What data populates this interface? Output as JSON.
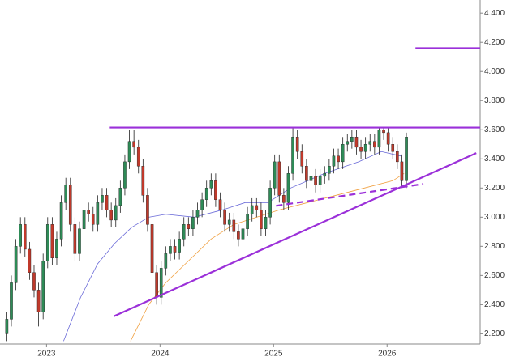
{
  "chart_data": {
    "type": "candlestick",
    "x": [
      2022.65,
      2022.69,
      2022.73,
      2022.77,
      2022.81,
      2022.85,
      2022.89,
      2022.93,
      2022.97,
      2023.01,
      2023.05,
      2023.09,
      2023.13,
      2023.17,
      2023.21,
      2023.25,
      2023.29,
      2023.33,
      2023.37,
      2023.41,
      2023.45,
      2023.49,
      2023.53,
      2023.57,
      2023.61,
      2023.65,
      2023.69,
      2023.73,
      2023.77,
      2023.81,
      2023.85,
      2023.89,
      2023.93,
      2023.97,
      2024.01,
      2024.05,
      2024.09,
      2024.13,
      2024.17,
      2024.21,
      2024.25,
      2024.29,
      2024.33,
      2024.37,
      2024.41,
      2024.45,
      2024.49,
      2024.53,
      2024.57,
      2024.61,
      2024.65,
      2024.69,
      2024.73,
      2024.77,
      2024.81,
      2024.85,
      2024.89,
      2024.93,
      2024.97,
      2025.01,
      2025.05,
      2025.09,
      2025.13,
      2025.17,
      2025.21,
      2025.25,
      2025.29,
      2025.33,
      2025.37,
      2025.41,
      2025.45,
      2025.49,
      2025.53,
      2025.57,
      2025.61,
      2025.65,
      2025.69,
      2025.73,
      2025.77,
      2025.81,
      2025.85,
      2025.89,
      2025.93,
      2025.97,
      2026.01,
      2026.05,
      2026.09,
      2026.13,
      2026.17
    ],
    "open": [
      2.2,
      2.3,
      2.55,
      2.8,
      2.95,
      2.78,
      2.62,
      2.5,
      2.35,
      2.7,
      2.95,
      2.72,
      2.85,
      3.1,
      3.22,
      2.95,
      2.75,
      2.92,
      3.05,
      3.02,
      2.95,
      3.1,
      3.15,
      3.05,
      2.98,
      3.08,
      3.2,
      3.38,
      3.52,
      3.48,
      3.35,
      3.15,
      2.95,
      2.62,
      2.45,
      2.65,
      2.75,
      2.8,
      2.76,
      2.85,
      2.95,
      2.92,
      3.0,
      3.05,
      3.12,
      3.2,
      3.25,
      3.12,
      3.05,
      2.95,
      2.98,
      2.9,
      2.85,
      2.92,
      3.02,
      3.08,
      3.05,
      2.92,
      3.0,
      3.2,
      3.38,
      3.15,
      3.1,
      3.3,
      3.55,
      3.45,
      3.35,
      3.25,
      3.28,
      3.22,
      3.28,
      3.3,
      3.35,
      3.42,
      3.38,
      3.5,
      3.52,
      3.55,
      3.48,
      3.45,
      3.5,
      3.52,
      3.48,
      3.6,
      3.58,
      3.5,
      3.45,
      3.38,
      3.25
    ],
    "high": [
      2.35,
      2.6,
      2.85,
      3.0,
      3.0,
      2.83,
      2.67,
      2.55,
      2.75,
      3.0,
      3.0,
      2.9,
      3.15,
      3.27,
      3.27,
      3.0,
      2.97,
      3.1,
      3.1,
      3.07,
      3.15,
      3.2,
      3.2,
      3.1,
      3.13,
      3.25,
      3.43,
      3.6,
      3.6,
      3.53,
      3.4,
      3.2,
      3.0,
      2.67,
      2.7,
      2.8,
      2.85,
      2.85,
      2.9,
      3.0,
      3.0,
      3.05,
      3.1,
      3.17,
      3.25,
      3.3,
      3.3,
      3.17,
      3.1,
      3.03,
      3.03,
      2.95,
      2.97,
      3.07,
      3.13,
      3.13,
      3.1,
      3.05,
      3.25,
      3.43,
      3.43,
      3.2,
      3.35,
      3.62,
      3.6,
      3.5,
      3.4,
      3.33,
      3.33,
      3.33,
      3.35,
      3.4,
      3.47,
      3.47,
      3.55,
      3.57,
      3.6,
      3.6,
      3.53,
      3.55,
      3.57,
      3.57,
      3.62,
      3.62,
      3.62,
      3.55,
      3.5,
      3.43,
      3.58
    ],
    "low": [
      2.15,
      2.25,
      2.5,
      2.75,
      2.73,
      2.57,
      2.45,
      2.25,
      2.3,
      2.65,
      2.67,
      2.67,
      2.8,
      3.05,
      2.9,
      2.7,
      2.7,
      2.87,
      2.97,
      2.9,
      2.9,
      3.05,
      3.0,
      2.93,
      2.93,
      3.03,
      3.15,
      3.33,
      3.43,
      3.3,
      3.1,
      2.9,
      2.57,
      2.4,
      2.4,
      2.6,
      2.7,
      2.71,
      2.71,
      2.8,
      2.87,
      2.87,
      2.95,
      3.0,
      3.07,
      3.15,
      3.07,
      3.0,
      2.9,
      2.9,
      2.85,
      2.8,
      2.8,
      2.87,
      2.97,
      3.0,
      2.87,
      2.87,
      2.95,
      3.15,
      3.1,
      3.05,
      3.05,
      3.25,
      3.4,
      3.3,
      3.2,
      3.2,
      3.17,
      3.17,
      3.23,
      3.25,
      3.3,
      3.33,
      3.33,
      3.45,
      3.47,
      3.43,
      3.4,
      3.4,
      3.45,
      3.43,
      3.43,
      3.53,
      3.45,
      3.4,
      3.33,
      3.2,
      3.2
    ],
    "close": [
      2.3,
      2.55,
      2.8,
      2.95,
      2.78,
      2.62,
      2.5,
      2.35,
      2.7,
      2.95,
      2.72,
      2.85,
      3.1,
      3.22,
      2.95,
      2.75,
      2.92,
      3.05,
      3.02,
      2.95,
      3.1,
      3.15,
      3.05,
      2.98,
      3.08,
      3.2,
      3.38,
      3.52,
      3.48,
      3.35,
      3.15,
      2.95,
      2.62,
      2.45,
      2.65,
      2.75,
      2.8,
      2.76,
      2.85,
      2.95,
      2.92,
      3.0,
      3.05,
      3.12,
      3.2,
      3.25,
      3.12,
      3.05,
      2.95,
      2.98,
      2.9,
      2.85,
      2.92,
      3.02,
      3.08,
      3.05,
      2.92,
      3.0,
      3.2,
      3.38,
      3.15,
      3.1,
      3.3,
      3.55,
      3.45,
      3.35,
      3.25,
      3.28,
      3.22,
      3.28,
      3.3,
      3.35,
      3.42,
      3.38,
      3.5,
      3.52,
      3.55,
      3.48,
      3.45,
      3.5,
      3.52,
      3.48,
      3.6,
      3.58,
      3.5,
      3.45,
      3.38,
      3.25,
      3.55
    ],
    "up_color": "#2e8b57",
    "down_color": "#c0392b",
    "lines": [
      {
        "color": "#6a6ad8",
        "x": [
          2023.15,
          2023.3,
          2023.45,
          2023.6,
          2023.75,
          2023.9,
          2024.05,
          2024.3,
          2024.55,
          2024.75,
          2024.95,
          2025.15,
          2025.45,
          2025.75,
          2025.95,
          2026.12
        ],
        "values": [
          2.15,
          2.45,
          2.68,
          2.82,
          2.93,
          3.0,
          3.02,
          3.0,
          3.05,
          3.1,
          3.1,
          3.2,
          3.3,
          3.38,
          3.45,
          3.42
        ]
      },
      {
        "color": "#f0a040",
        "x": [
          2023.74,
          2023.9,
          2024.05,
          2024.25,
          2024.45,
          2024.65,
          2024.85,
          2025.05,
          2025.3,
          2025.55,
          2025.8,
          2026.05,
          2026.15
        ],
        "values": [
          2.15,
          2.4,
          2.55,
          2.7,
          2.85,
          2.95,
          3.0,
          3.05,
          3.1,
          3.15,
          3.2,
          3.25,
          3.3
        ]
      }
    ],
    "trendlines": [
      {
        "color": "#9b30d9",
        "dashed": false,
        "x": [
          2023.557,
          2026.82
        ],
        "values": [
          3.615,
          3.615
        ]
      },
      {
        "color": "#9b30d9",
        "dashed": false,
        "x": [
          2026.25,
          2026.82
        ],
        "values": [
          4.16,
          4.16
        ]
      },
      {
        "color": "#9b30d9",
        "dashed": false,
        "x": [
          2023.593,
          2026.786
        ],
        "values": [
          2.32,
          3.44
        ]
      },
      {
        "color": "#9b30d9",
        "dashed": true,
        "x": [
          2025.022,
          2026.32
        ],
        "values": [
          3.078,
          3.228
        ]
      }
    ],
    "xlim": [
      2022.59,
      2026.82
    ],
    "ylim": [
      2.13,
      4.49
    ],
    "xticks": [
      2023,
      2024,
      2025,
      2026
    ],
    "yticks": [
      {
        "value": 2.2,
        "label": "2.200"
      },
      {
        "value": 2.4,
        "label": "2.400"
      },
      {
        "value": 2.6,
        "label": "2.600"
      },
      {
        "value": 2.8,
        "label": "2.800"
      },
      {
        "value": 3.0,
        "label": "3.000"
      },
      {
        "value": 3.2,
        "label": "3.200"
      },
      {
        "value": 3.4,
        "label": "3.400"
      },
      {
        "value": 3.6,
        "label": "3.600"
      },
      {
        "value": 3.8,
        "label": "3.800"
      },
      {
        "value": 4.0,
        "label": "4.000"
      },
      {
        "value": 4.2,
        "label": "4.200"
      },
      {
        "value": 4.4,
        "label": "4.400"
      }
    ]
  }
}
